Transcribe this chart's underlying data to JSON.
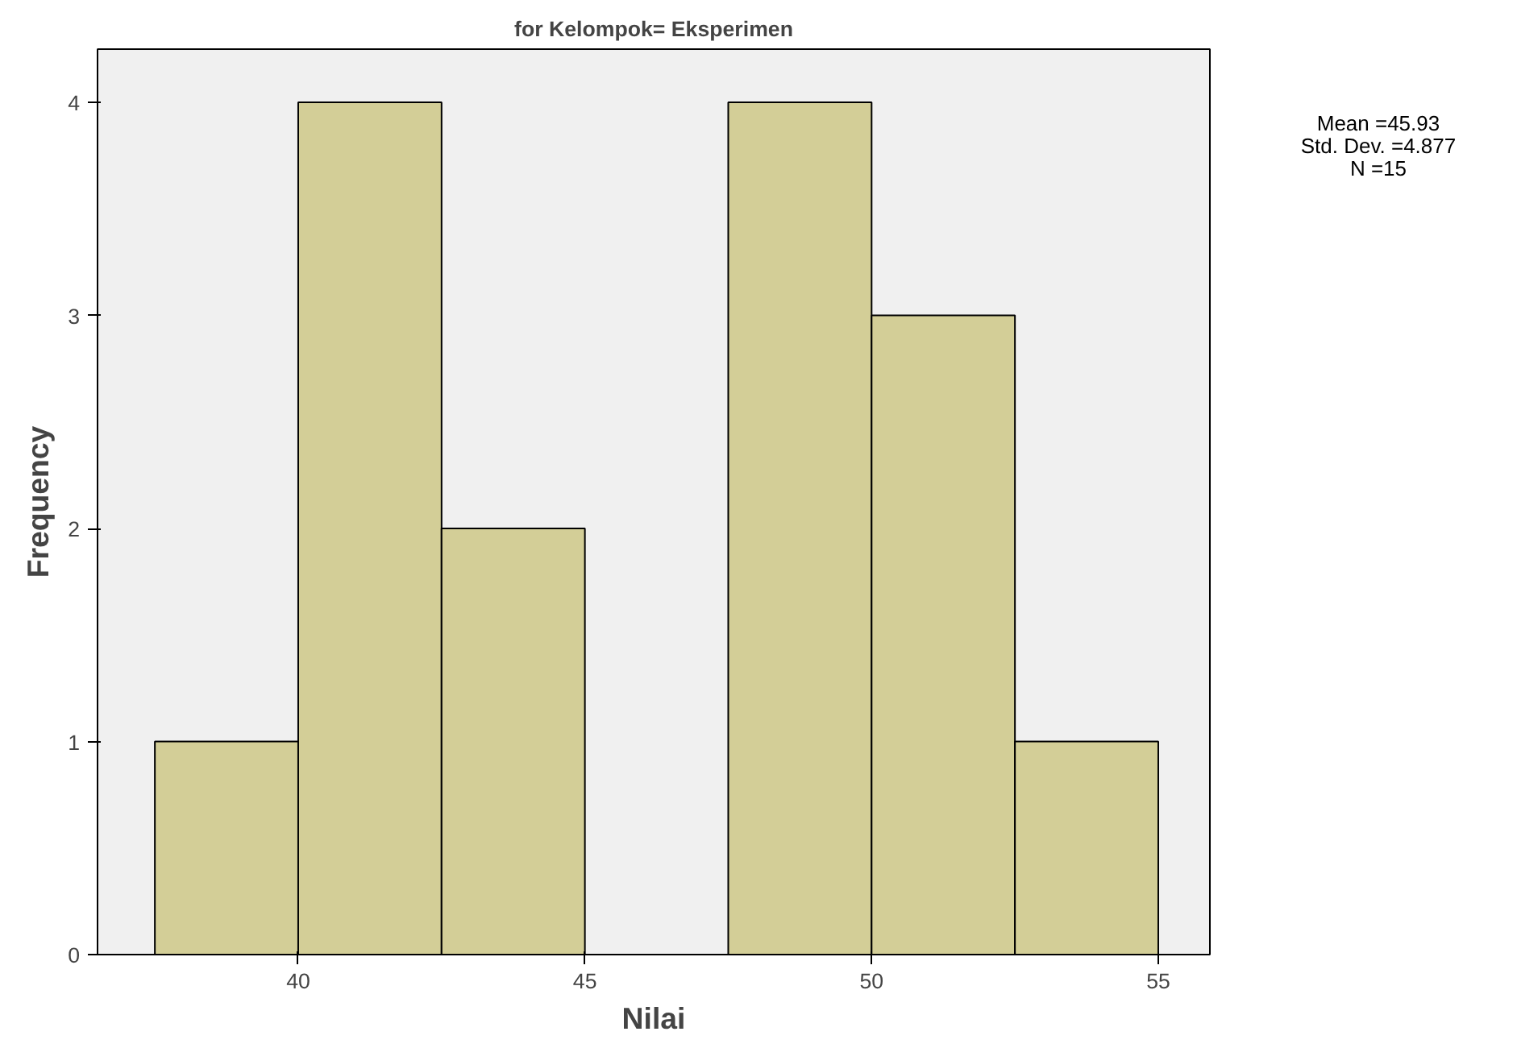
{
  "chart_data": {
    "type": "histogram",
    "title": "for Kelompok= Eksperimen",
    "xlabel": "Nilai",
    "ylabel": "Frequency",
    "bins": [
      37.5,
      40,
      42.5,
      45,
      47.5,
      50,
      52.5,
      55
    ],
    "values": [
      1,
      4,
      2,
      0,
      4,
      3,
      1
    ],
    "color": "#d3ce97",
    "xlim": [
      36.5,
      55.9
    ],
    "xticks": [
      40,
      45,
      50,
      55
    ],
    "ylim": [
      0,
      4.25
    ],
    "yticks": [
      0,
      1,
      2,
      3,
      4
    ],
    "grid": false,
    "annotations": [
      "Mean =45.93",
      "Std. Dev. =4.877",
      "N =15"
    ]
  }
}
